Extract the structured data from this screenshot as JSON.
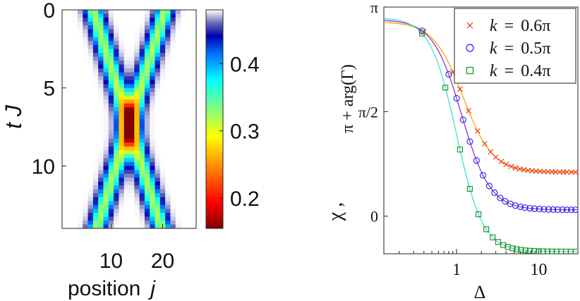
{
  "chart_data": [
    {
      "type": "heatmap",
      "xlabel": "position",
      "xlabel_symbol": "j",
      "ylabel": "t J",
      "x_ticks": [
        "10",
        "20"
      ],
      "y_ticks": [
        "0",
        "5",
        "10"
      ],
      "x_tick_values": [
        10,
        20
      ],
      "y_tick_values": [
        0,
        5,
        10
      ],
      "xlim": [
        0.5,
        26.5
      ],
      "ylim": [
        0,
        14
      ],
      "colorbar": {
        "ticks": [
          "0.2",
          "0.3",
          "0.4"
        ],
        "tick_values": [
          0.2,
          0.3,
          0.4
        ],
        "range": [
          0.155,
          0.48
        ],
        "colormap": "jet (reversed)"
      },
      "description_values": {
        "pulse_speed": 0.95,
        "left_pulse_start": 6.5,
        "right_pulse_start": 20.5,
        "collision_time": 7.3,
        "collision_position": 13.5,
        "min_value": 0.155
      }
    },
    {
      "type": "scatter",
      "xscale": "log",
      "xlabel": "Δ",
      "ylabel_left": "χ ,",
      "ylabel_right": "π + arg(Γ)",
      "xlim": [
        0.13,
        30
      ],
      "ylim": [
        -0.18,
        1.0
      ],
      "y_unit": "π",
      "x_ticks": [
        "1",
        "10"
      ],
      "x_tick_values": [
        1,
        10
      ],
      "y_ticks": [
        "0",
        "π/2",
        "π"
      ],
      "y_tick_values": [
        0,
        0.5,
        1.0
      ],
      "legend_position": "top-right",
      "series": [
        {
          "name": "k = 0.6π",
          "k": "0.6π",
          "marker": "×",
          "color": "#e8320e",
          "line_color": "#ffa500",
          "curve": {
            "start": 0.93,
            "end": 0.21,
            "center": 1.2,
            "slope": 1.2
          },
          "points_x": [
            0.4,
            0.9,
            1.1,
            1.4,
            1.8,
            2.2,
            2.6,
            3.0,
            3.5,
            4.0,
            4.6,
            5.2,
            5.9,
            6.6,
            7.4,
            8.3,
            9.3,
            10.4,
            11.6,
            13,
            14.5,
            16,
            18,
            20,
            22,
            25,
            28
          ]
        },
        {
          "name": "k = 0.5π",
          "k": "0.5π",
          "marker": "○",
          "color": "#1e1ee6",
          "line_color": "#9932cc",
          "curve": {
            "start": 0.94,
            "end": 0.03,
            "center": 1.15,
            "slope": 1.25
          },
          "points_x": [
            0.38,
            0.8,
            1.0,
            1.2,
            1.45,
            1.75,
            2.1,
            2.5,
            2.9,
            3.4,
            3.9,
            4.5,
            5.2,
            6.0,
            6.8,
            7.8,
            8.9,
            10.2,
            11.6,
            13.2,
            15,
            17,
            19.5,
            22,
            25,
            28
          ]
        },
        {
          "name": "k = 0.4π",
          "k": "0.4π",
          "marker": "□",
          "color": "#1a8c1a",
          "line_color": "#40e0d0",
          "curve": {
            "start": 0.95,
            "end": -0.17,
            "center": 1.0,
            "slope": 1.35
          },
          "points_x": [
            0.38,
            0.73,
            1.1,
            1.45,
            1.85,
            2.3,
            2.75,
            3.2,
            3.7,
            4.2,
            4.8,
            5.4,
            6.1,
            6.9,
            7.8,
            8.8,
            10,
            11.3,
            12.8,
            14.5,
            16.5,
            18.8,
            21.5,
            24.5,
            28
          ]
        }
      ]
    }
  ]
}
